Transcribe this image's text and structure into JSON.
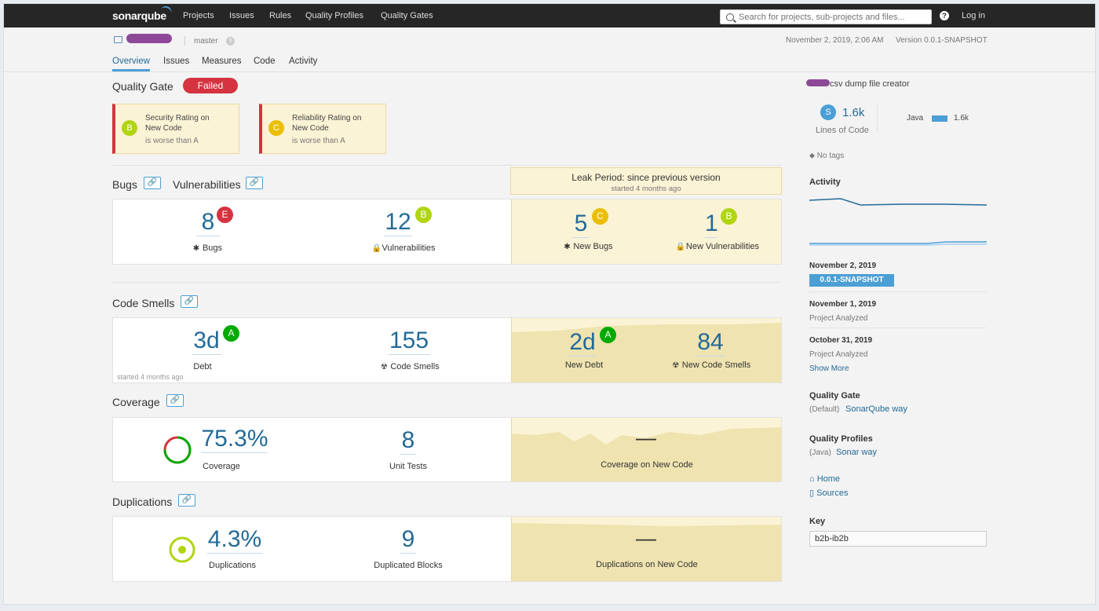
{
  "nav": {
    "logo_a": "sonar",
    "logo_b": "qube",
    "items": [
      "Projects",
      "Issues",
      "Rules",
      "Quality Profiles",
      "Quality Gates"
    ],
    "search_placeholder": "Search for projects, sub-projects and files...",
    "help": "?",
    "login": "Log in"
  },
  "project": {
    "branch": "master",
    "branch_help": "?",
    "analysis_date": "November 2, 2019, 2:06 AM",
    "version": "Version 0.0.1-SNAPSHOT"
  },
  "tabs": [
    "Overview",
    "Issues",
    "Measures",
    "Code",
    "Activity"
  ],
  "quality_gate": {
    "title": "Quality Gate",
    "status": "Failed",
    "conditions": [
      {
        "rating": "B",
        "color": "#b0d513",
        "line1": "Security Rating on",
        "line2": "New Code",
        "detail": "is worse than A"
      },
      {
        "rating": "C",
        "color": "#eabe06",
        "line1": "Reliability Rating on",
        "line2": "New Code",
        "detail": "is worse than A"
      }
    ]
  },
  "leak": {
    "title": "Leak Period: since previous version",
    "started": "started 4 months ago"
  },
  "bugs_vulns": {
    "title_bugs": "Bugs",
    "title_vulns": "Vulnerabilities",
    "link_icon": "🔗",
    "bugs": {
      "value": "8",
      "rating": "E",
      "label": "Bugs"
    },
    "vulns": {
      "value": "12",
      "rating": "B",
      "label": "Vulnerabilities"
    },
    "new_bugs": {
      "value": "5",
      "rating": "C",
      "label": "New Bugs"
    },
    "new_vulns": {
      "value": "1",
      "rating": "B",
      "label": "New Vulnerabilities"
    }
  },
  "code_smells": {
    "title": "Code Smells",
    "debt": {
      "value": "3d",
      "rating": "A",
      "label": "Debt"
    },
    "smells": {
      "value": "155",
      "label": "Code Smells"
    },
    "new_debt": {
      "value": "2d",
      "rating": "A",
      "label": "New Debt"
    },
    "new_smells": {
      "value": "84",
      "label": "New Code Smells"
    },
    "started": "started 4 months ago"
  },
  "coverage": {
    "title": "Coverage",
    "coverage": {
      "value": "75.3%",
      "label": "Coverage",
      "percent": 75.3
    },
    "tests": {
      "value": "8",
      "label": "Unit Tests"
    },
    "new_cov": {
      "value": "—",
      "label": "Coverage on New Code"
    }
  },
  "duplications": {
    "title": "Duplications",
    "dups": {
      "value": "4.3%",
      "label": "Duplications"
    },
    "blocks": {
      "value": "9",
      "label": "Duplicated Blocks"
    },
    "new_dups": {
      "value": "—",
      "label": "Duplications on New Code"
    }
  },
  "sidebar": {
    "description": "csv dump file creator",
    "loc_badge": "S",
    "loc_value": "1.6k",
    "loc_label": "Lines of Code",
    "lang": "Java",
    "lang_value": "1.6k",
    "tags": "No tags",
    "activity_title": "Activity",
    "events": [
      {
        "date": "November 2, 2019",
        "badge": "0.0.1-SNAPSHOT"
      },
      {
        "date": "November 1, 2019",
        "text": "Project Analyzed"
      },
      {
        "date": "October 31, 2019",
        "text": "Project Analyzed"
      }
    ],
    "show_more": "Show More",
    "qg_title": "Quality Gate",
    "qg_default": "(Default)",
    "qg_name": "SonarQube way",
    "qp_title": "Quality Profiles",
    "qp_lang": "(Java)",
    "qp_name": "Sonar way",
    "home": "Home",
    "sources": "Sources",
    "key_title": "Key",
    "key_value": "b2b-ib2b"
  },
  "colors": {
    "accent": "#4b9fd5",
    "link": "#236a97",
    "failed": "#d4333f",
    "rating_a": "#00aa00",
    "rating_b": "#b0d513",
    "rating_c": "#eabe06",
    "rating_e": "#d4333f"
  }
}
